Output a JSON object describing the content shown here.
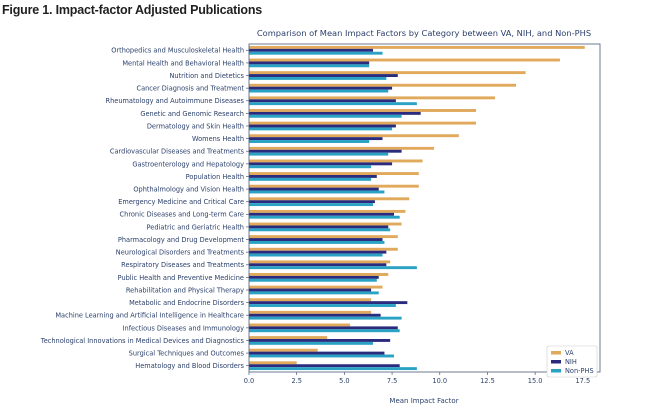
{
  "figure": {
    "title": "Figure 1. Impact-factor Adjusted Publications"
  },
  "colors": {
    "VA": "#e0a95c",
    "NIH": "#2b2b7e",
    "Non-PHS": "#2aa2c4",
    "title": "#2a3f6a",
    "text": "#2a3f6a",
    "frame": "#4a5a78"
  },
  "chart_data": {
    "type": "bar",
    "orientation": "horizontal",
    "title": "Comparison of Mean Impact Factors by Category between VA, NIH, and Non-PHS",
    "xlabel": "Mean Impact Factor",
    "ylabel": "",
    "xlim": [
      0,
      18.4
    ],
    "xticks": [
      "0.0",
      "2.5",
      "5.0",
      "7.5",
      "10.0",
      "12.5",
      "15.0",
      "17.5"
    ],
    "xtick_values": [
      0,
      2.5,
      5,
      7.5,
      10,
      12.5,
      15,
      17.5
    ],
    "grid": false,
    "legend_position": "bottom-right",
    "categories": [
      "Orthopedics and Musculoskeletal Health",
      "Mental Health and Behavioral Health",
      "Nutrition and Dietetics",
      "Cancer Diagnosis and Treatment",
      "Rheumatology and Autoimmune Diseases",
      "Genetic and Genomic Research",
      "Dermatology and Skin Health",
      "Womens Health",
      "Cardiovascular Diseases and Treatments",
      "Gastroenterology and Hepatology",
      "Population Health",
      "Ophthalmology and Vision Health",
      "Emergency Medicine and Critical Care",
      "Chronic Diseases and Long-term Care",
      "Pediatric and Geriatric Health",
      "Pharmacology and Drug Development",
      "Neurological Disorders and Treatments",
      "Respiratory Diseases and Treatments",
      "Public Health and Preventive Medicine",
      "Rehabilitation and Physical Therapy",
      "Metabolic and Endocrine Disorders",
      "Machine Learning and Artificial Intelligence in Healthcare",
      "Infectious Diseases and Immunology",
      "Technological Innovations in Medical Devices and Diagnostics",
      "Surgical Techniques and Outcomes",
      "Hematology and Blood Disorders"
    ],
    "series": [
      {
        "name": "VA",
        "values": [
          17.6,
          16.3,
          14.5,
          14.0,
          12.9,
          11.9,
          11.9,
          11.0,
          9.7,
          9.1,
          8.9,
          8.9,
          8.4,
          8.2,
          8.0,
          7.8,
          7.8,
          7.4,
          7.3,
          7.0,
          6.4,
          6.4,
          5.3,
          4.1,
          3.6,
          2.5
        ]
      },
      {
        "name": "NIH",
        "values": [
          6.5,
          6.3,
          7.8,
          7.5,
          7.7,
          9.0,
          7.7,
          7.0,
          8.0,
          7.5,
          6.7,
          6.8,
          6.6,
          7.6,
          7.3,
          7.0,
          7.2,
          7.2,
          6.8,
          6.4,
          8.3,
          6.9,
          7.8,
          7.4,
          7.1,
          7.9
        ]
      },
      {
        "name": "Non-PHS",
        "values": [
          7.0,
          6.3,
          7.2,
          7.3,
          8.8,
          8.0,
          7.5,
          6.3,
          7.3,
          6.4,
          6.4,
          7.1,
          6.5,
          7.9,
          7.4,
          7.1,
          7.0,
          8.8,
          6.7,
          6.8,
          7.7,
          8.0,
          7.9,
          6.5,
          7.6,
          8.8
        ]
      }
    ]
  }
}
